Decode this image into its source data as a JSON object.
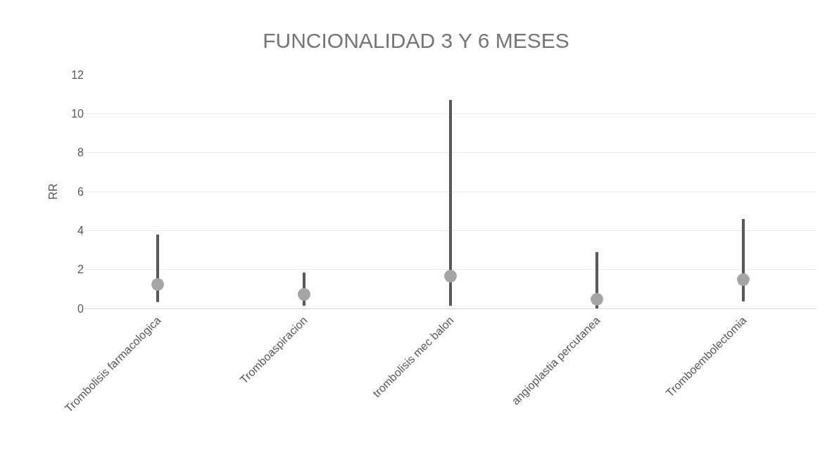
{
  "chart_data": {
    "type": "scatter",
    "title": "FUNCIONALIDAD 3 Y 6 MESES",
    "ylabel": "RR",
    "categories": [
      "Trombolisis farmacologica",
      "Tromboaspiracion",
      "trombolisis mec balon",
      "angioplastia percutanea",
      "Tromboembolectomia"
    ],
    "series": [
      {
        "color": "#a5a5a5",
        "values": [
          1.23,
          0.72,
          1.66,
          0.47,
          1.48
        ],
        "errors": [
          [
            0.33,
            3.79
          ],
          [
            0.14,
            1.84
          ],
          [
            0.14,
            10.7
          ],
          [
            0.0,
            2.89
          ],
          [
            0.36,
            4.59
          ]
        ]
      }
    ],
    "ylim": [
      0,
      12
    ],
    "yticks": [
      0,
      2,
      4,
      6,
      8,
      10,
      12
    ],
    "grid": "y",
    "marker": "circle",
    "legend": false
  }
}
